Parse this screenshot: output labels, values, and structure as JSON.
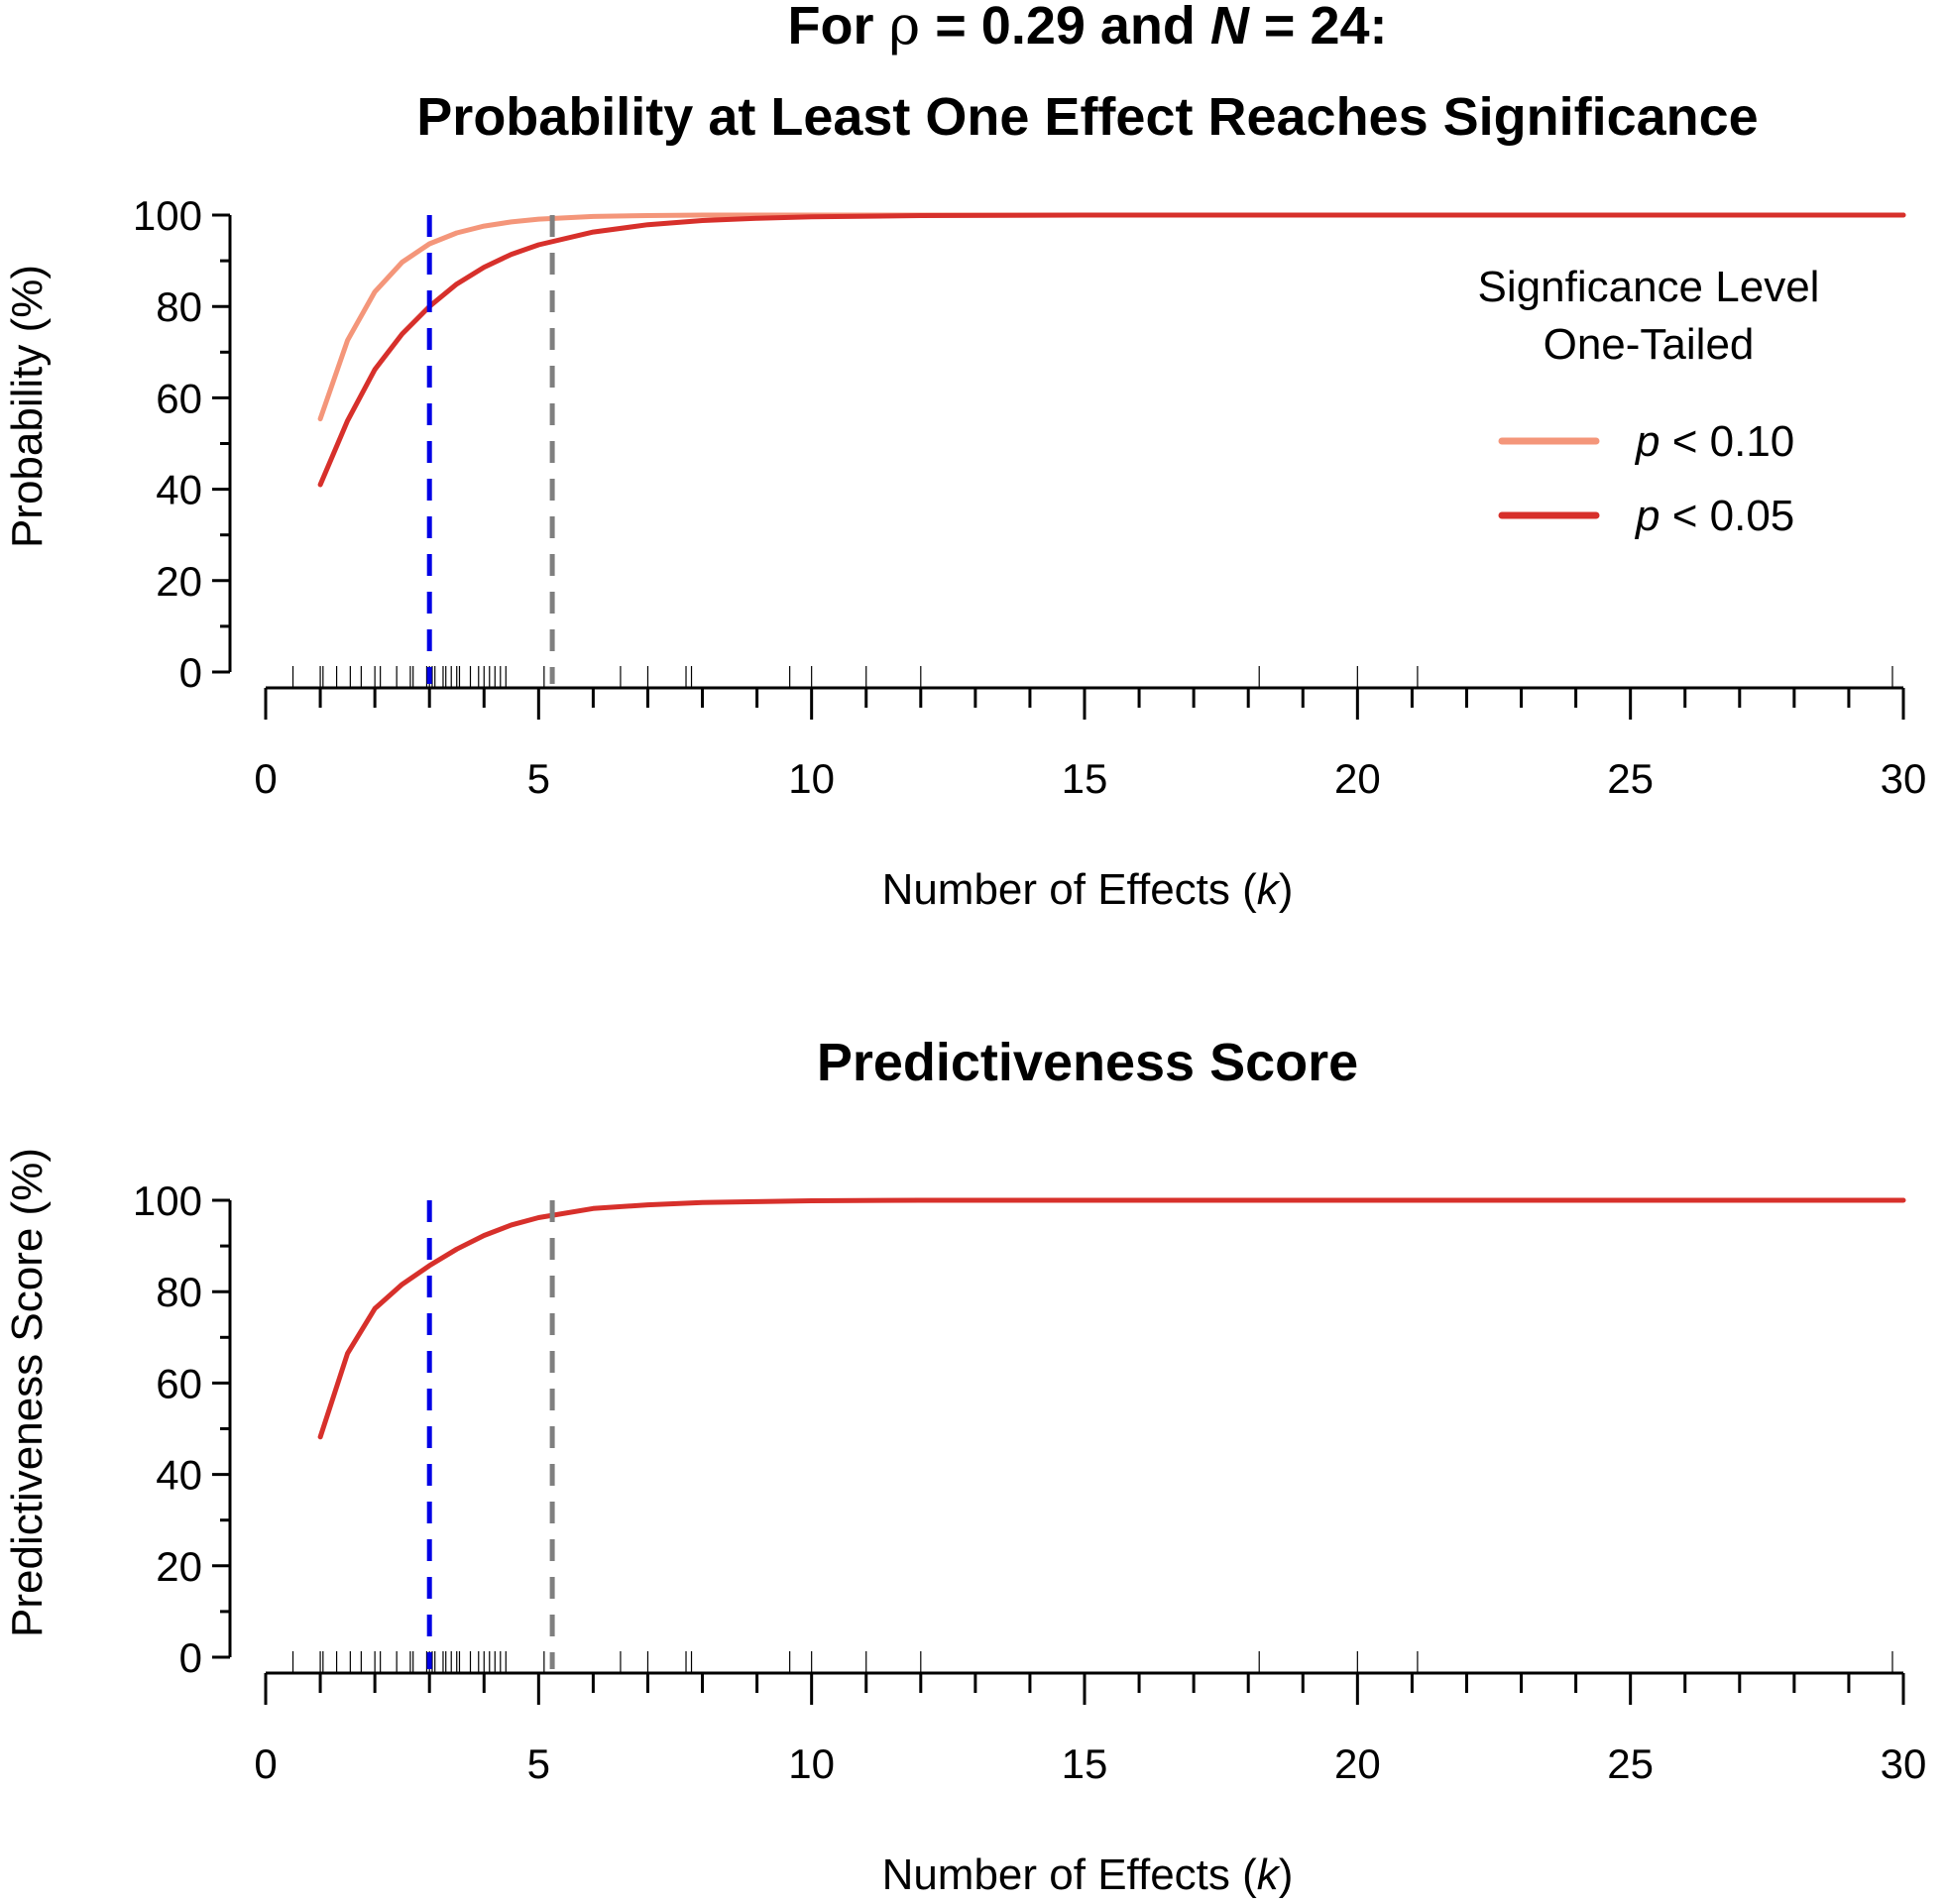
{
  "chart_data": [
    {
      "type": "line",
      "title_line1": [
        "For ",
        "ρ",
        " = 0.29 and ",
        "N",
        " = 24:"
      ],
      "title_line2": "Probability at Least One Effect Reaches Significance",
      "xlabel": [
        "Number of Effects (",
        "k",
        ")"
      ],
      "ylabel": "Probability (%)",
      "xlim": [
        0,
        30
      ],
      "ylim": [
        0,
        100
      ],
      "x_ticks": [
        0,
        5,
        10,
        15,
        20,
        25,
        30
      ],
      "y_ticks": [
        0,
        20,
        40,
        60,
        80,
        100
      ],
      "legend": {
        "title_line1": "Signficance Level",
        "title_line2": "One-Tailed",
        "position": "top-right"
      },
      "series": [
        {
          "name": [
            "p",
            " < 0.10"
          ],
          "color": "#F4967A",
          "x": [
            1,
            1.5,
            2,
            2.5,
            3,
            3.5,
            4,
            4.5,
            5,
            6,
            7,
            8,
            9,
            10,
            12,
            15,
            20,
            25,
            30
          ],
          "values": [
            55.4,
            72.6,
            83.2,
            89.7,
            93.7,
            96.1,
            97.6,
            98.5,
            99.1,
            99.7,
            99.9,
            100,
            100,
            100,
            100,
            100,
            100,
            100,
            100
          ]
        },
        {
          "name": [
            "p",
            " < 0.05"
          ],
          "color": "#D7302B",
          "x": [
            1,
            1.5,
            2,
            2.5,
            3,
            3.5,
            4,
            4.5,
            5,
            6,
            7,
            8,
            9,
            10,
            12,
            15,
            20,
            25,
            30
          ],
          "values": [
            41.0,
            55.0,
            66.2,
            74.0,
            80.0,
            84.9,
            88.6,
            91.4,
            93.5,
            96.3,
            97.9,
            98.8,
            99.3,
            99.6,
            99.9,
            100,
            100,
            100,
            100
          ]
        }
      ],
      "reference_lines": [
        {
          "x": 3.0,
          "color": "#0000E6",
          "style": "dashed"
        },
        {
          "x": 5.25,
          "color": "#7F7F7F",
          "style": "dashed"
        }
      ],
      "rug": [
        0.5,
        1.0,
        1.05,
        1.3,
        1.55,
        1.75,
        2.0,
        2.1,
        2.4,
        2.65,
        2.7,
        2.95,
        3.0,
        3.05,
        3.1,
        3.25,
        3.3,
        3.4,
        3.5,
        3.55,
        3.75,
        3.9,
        4.0,
        4.1,
        4.2,
        4.3,
        4.4,
        5.1,
        6.5,
        7.0,
        7.7,
        7.8,
        9.6,
        10.0,
        11.0,
        12.0,
        18.2,
        20.0,
        21.1,
        29.8
      ]
    },
    {
      "type": "line",
      "title": "Predictiveness Score",
      "xlabel": [
        "Number of Effects (",
        "k",
        ")"
      ],
      "ylabel": "Predictiveness Score (%)",
      "xlim": [
        0,
        30
      ],
      "ylim": [
        0,
        100
      ],
      "x_ticks": [
        0,
        5,
        10,
        15,
        20,
        25,
        30
      ],
      "y_ticks": [
        0,
        20,
        40,
        60,
        80,
        100
      ],
      "series": [
        {
          "color": "#D7302B",
          "x": [
            1,
            1.5,
            2,
            2.5,
            3,
            3.5,
            4,
            4.5,
            5,
            6,
            7,
            8,
            9,
            10,
            12,
            15,
            20,
            25,
            30
          ],
          "values": [
            48.2,
            66.5,
            76.3,
            81.6,
            85.7,
            89.3,
            92.3,
            94.6,
            96.2,
            98.2,
            99.0,
            99.5,
            99.7,
            99.9,
            100,
            100,
            100,
            100,
            100
          ]
        }
      ],
      "reference_lines": [
        {
          "x": 3.0,
          "color": "#0000E6",
          "style": "dashed"
        },
        {
          "x": 5.25,
          "color": "#7F7F7F",
          "style": "dashed"
        }
      ],
      "rug": [
        0.5,
        1.0,
        1.05,
        1.3,
        1.55,
        1.75,
        2.0,
        2.1,
        2.4,
        2.65,
        2.7,
        2.95,
        3.0,
        3.05,
        3.1,
        3.25,
        3.3,
        3.4,
        3.5,
        3.55,
        3.75,
        3.9,
        4.0,
        4.1,
        4.2,
        4.3,
        4.4,
        5.1,
        6.5,
        7.0,
        7.7,
        7.8,
        9.6,
        10.0,
        11.0,
        12.0,
        18.2,
        20.0,
        21.1,
        29.8
      ]
    }
  ]
}
